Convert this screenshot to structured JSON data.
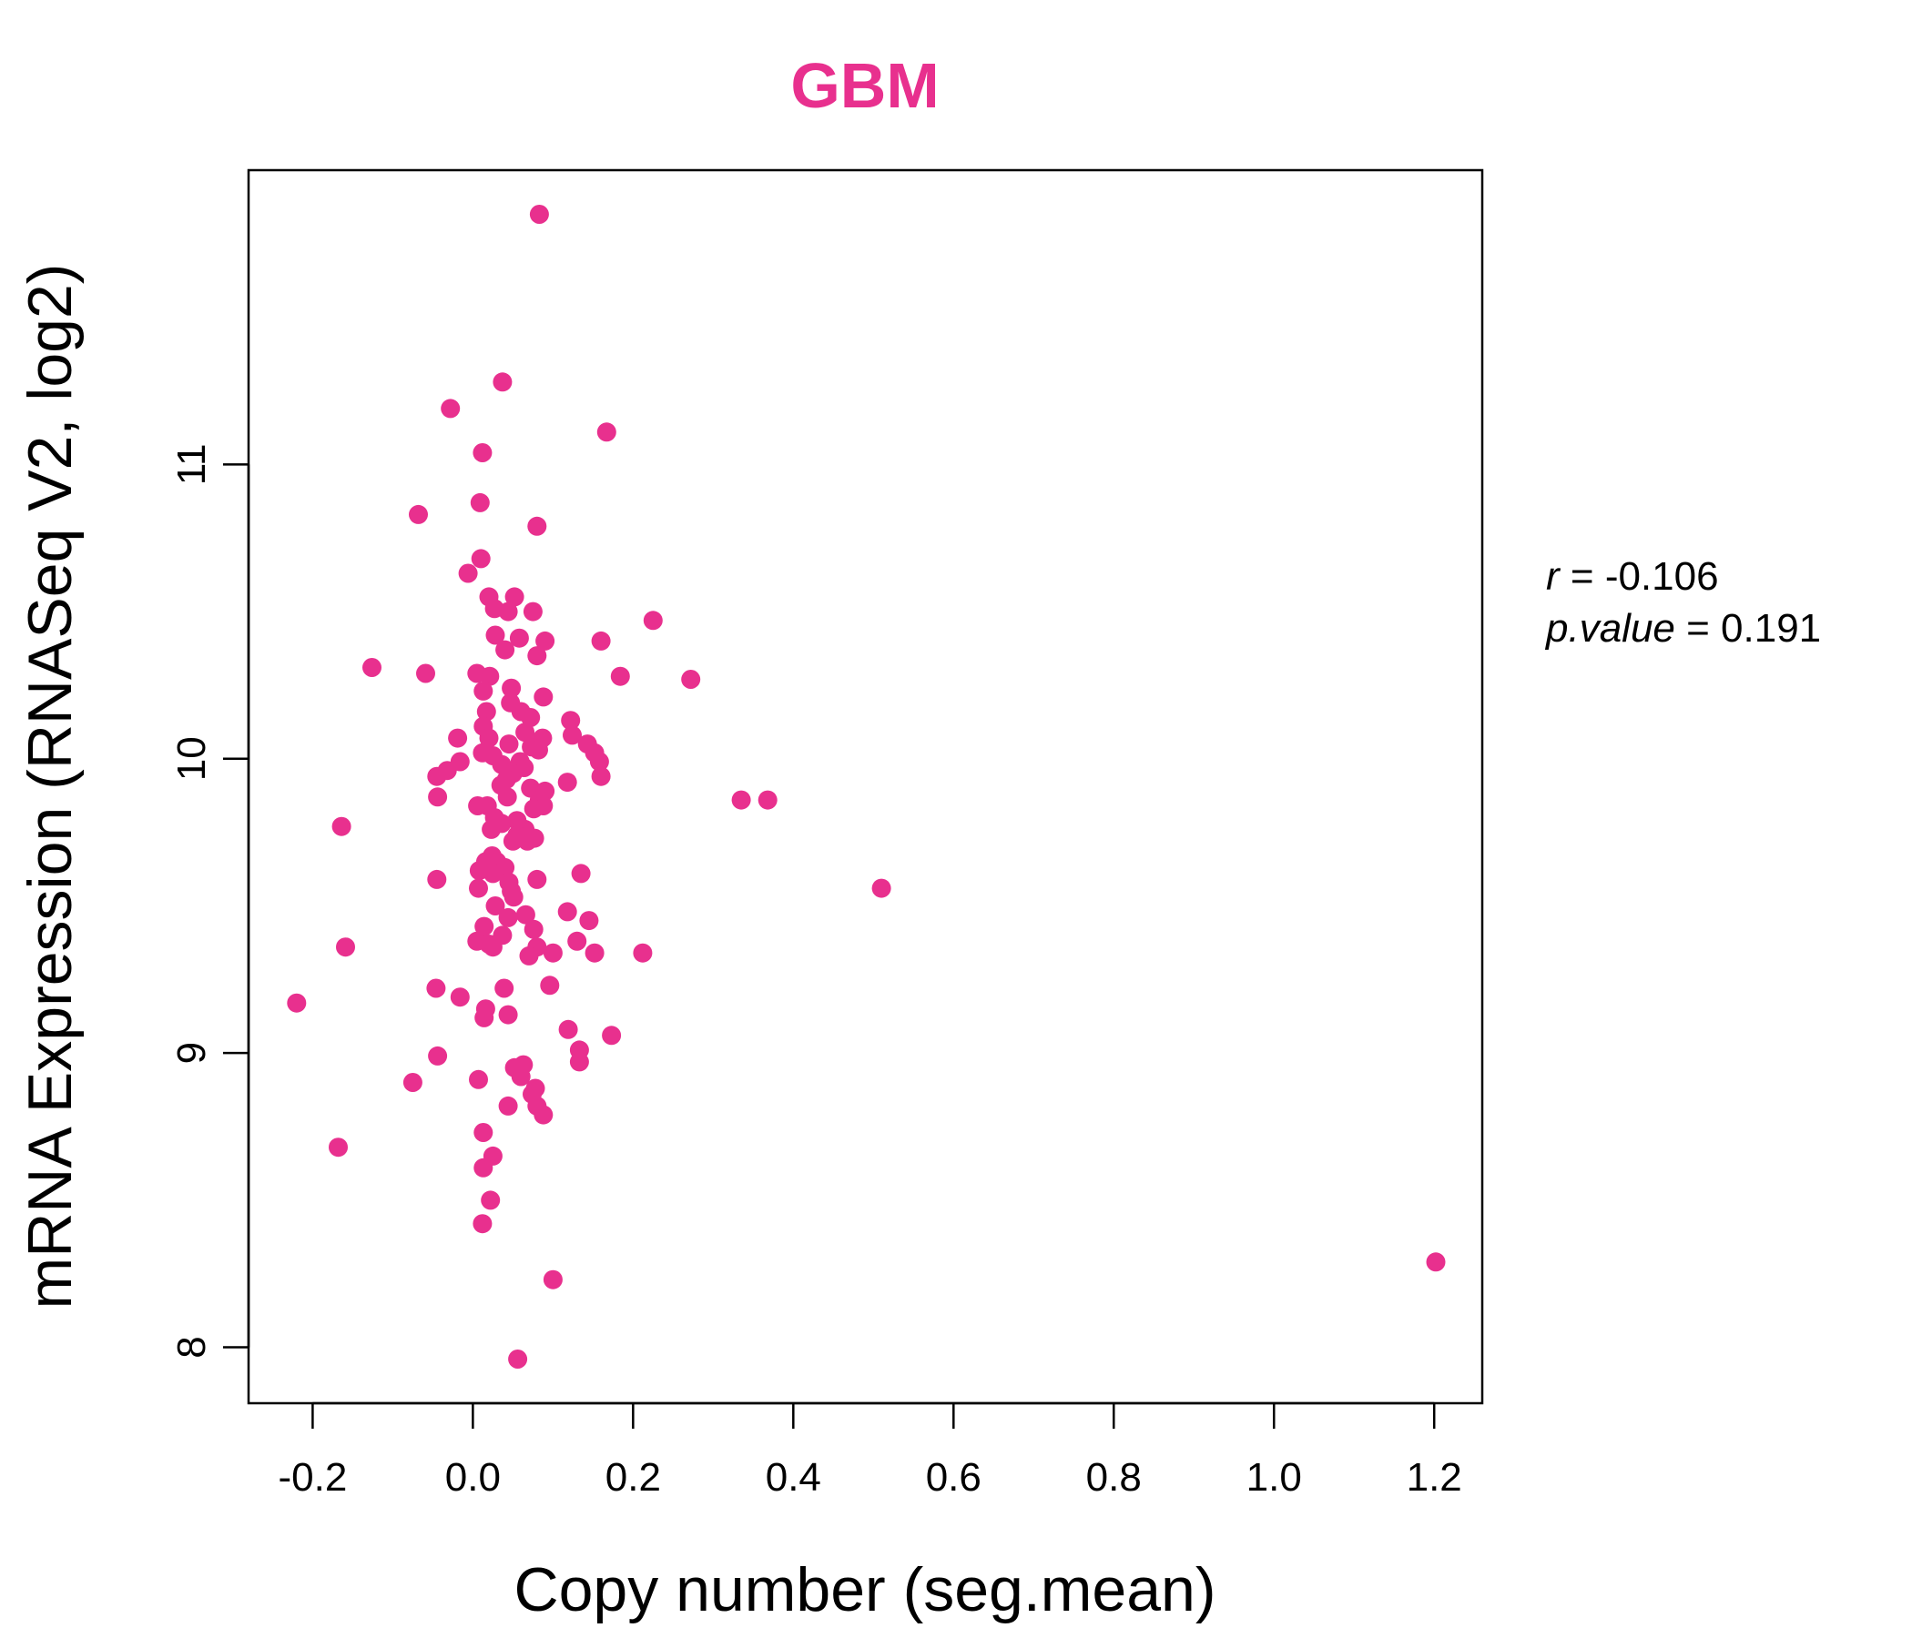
{
  "chart_data": {
    "type": "scatter",
    "title": "GBM",
    "xlabel": "Copy number (seg.mean)",
    "ylabel": "mRNA Expression (RNASeq V2, log2)",
    "xlim": [
      -0.28,
      1.26
    ],
    "ylim": [
      7.81,
      12.0
    ],
    "xticks": [
      -0.2,
      0.0,
      0.2,
      0.4,
      0.6,
      0.8,
      1.0,
      1.2
    ],
    "xtick_labels": [
      "-0.2",
      "0.0",
      "0.2",
      "0.4",
      "0.6",
      "0.8",
      "1.0",
      "1.2"
    ],
    "yticks": [
      8,
      9,
      10,
      11
    ],
    "ytick_labels": [
      "8",
      "9",
      "10",
      "11"
    ],
    "grid": false,
    "colors": {
      "point": "#E8308E",
      "title": "#E8308E"
    },
    "stats": {
      "r_label": "r",
      "r_value": "-0.106",
      "p_label": "p.value",
      "p_value": "0.191"
    },
    "points": [
      {
        "x": 0.083,
        "y": 11.85
      },
      {
        "x": 0.037,
        "y": 11.28
      },
      {
        "x": -0.028,
        "y": 11.19
      },
      {
        "x": 0.167,
        "y": 11.11
      },
      {
        "x": 0.012,
        "y": 11.04
      },
      {
        "x": 0.009,
        "y": 10.87
      },
      {
        "x": -0.068,
        "y": 10.83
      },
      {
        "x": 0.08,
        "y": 10.79
      },
      {
        "x": 0.01,
        "y": 10.68
      },
      {
        "x": -0.006,
        "y": 10.63
      },
      {
        "x": 0.02,
        "y": 10.55
      },
      {
        "x": 0.052,
        "y": 10.55
      },
      {
        "x": 0.027,
        "y": 10.51
      },
      {
        "x": 0.044,
        "y": 10.5
      },
      {
        "x": 0.075,
        "y": 10.5
      },
      {
        "x": 0.225,
        "y": 10.47
      },
      {
        "x": 0.028,
        "y": 10.42
      },
      {
        "x": 0.058,
        "y": 10.41
      },
      {
        "x": 0.09,
        "y": 10.4
      },
      {
        "x": 0.16,
        "y": 10.4
      },
      {
        "x": 0.04,
        "y": 10.37
      },
      {
        "x": 0.08,
        "y": 10.35
      },
      {
        "x": -0.126,
        "y": 10.31
      },
      {
        "x": 0.005,
        "y": 10.29
      },
      {
        "x": -0.059,
        "y": 10.29
      },
      {
        "x": 0.021,
        "y": 10.28
      },
      {
        "x": 0.184,
        "y": 10.28
      },
      {
        "x": 0.272,
        "y": 10.27
      },
      {
        "x": 0.013,
        "y": 10.23
      },
      {
        "x": 0.048,
        "y": 10.24
      },
      {
        "x": 0.088,
        "y": 10.21
      },
      {
        "x": 0.047,
        "y": 10.19
      },
      {
        "x": 0.017,
        "y": 10.16
      },
      {
        "x": 0.06,
        "y": 10.16
      },
      {
        "x": 0.072,
        "y": 10.14
      },
      {
        "x": 0.122,
        "y": 10.13
      },
      {
        "x": 0.013,
        "y": 10.11
      },
      {
        "x": 0.065,
        "y": 10.09
      },
      {
        "x": 0.124,
        "y": 10.08
      },
      {
        "x": 0.02,
        "y": 10.07
      },
      {
        "x": 0.087,
        "y": 10.07
      },
      {
        "x": -0.019,
        "y": 10.07
      },
      {
        "x": 0.143,
        "y": 10.05
      },
      {
        "x": 0.073,
        "y": 10.04
      },
      {
        "x": 0.045,
        "y": 10.05
      },
      {
        "x": 0.012,
        "y": 10.02
      },
      {
        "x": 0.082,
        "y": 10.03
      },
      {
        "x": 0.152,
        "y": 10.02
      },
      {
        "x": 0.025,
        "y": 10.01
      },
      {
        "x": 0.158,
        "y": 9.99
      },
      {
        "x": -0.016,
        "y": 9.99
      },
      {
        "x": 0.059,
        "y": 9.99
      },
      {
        "x": 0.036,
        "y": 9.98
      },
      {
        "x": 0.064,
        "y": 9.97
      },
      {
        "x": -0.032,
        "y": 9.96
      },
      {
        "x": 0.05,
        "y": 9.95
      },
      {
        "x": -0.045,
        "y": 9.94
      },
      {
        "x": 0.16,
        "y": 9.94
      },
      {
        "x": 0.042,
        "y": 9.93
      },
      {
        "x": 0.118,
        "y": 9.92
      },
      {
        "x": 0.035,
        "y": 9.91
      },
      {
        "x": 0.072,
        "y": 9.9
      },
      {
        "x": 0.09,
        "y": 9.89
      },
      {
        "x": -0.044,
        "y": 9.87
      },
      {
        "x": 0.043,
        "y": 9.87
      },
      {
        "x": 0.083,
        "y": 9.86
      },
      {
        "x": 0.335,
        "y": 9.86
      },
      {
        "x": 0.368,
        "y": 9.86
      },
      {
        "x": 0.006,
        "y": 9.84
      },
      {
        "x": 0.018,
        "y": 9.84
      },
      {
        "x": 0.088,
        "y": 9.84
      },
      {
        "x": 0.076,
        "y": 9.83
      },
      {
        "x": 0.027,
        "y": 9.8
      },
      {
        "x": 0.055,
        "y": 9.79
      },
      {
        "x": 0.036,
        "y": 9.78
      },
      {
        "x": -0.164,
        "y": 9.77
      },
      {
        "x": 0.023,
        "y": 9.76
      },
      {
        "x": 0.065,
        "y": 9.76
      },
      {
        "x": 0.055,
        "y": 9.74
      },
      {
        "x": 0.077,
        "y": 9.73
      },
      {
        "x": 0.05,
        "y": 9.72
      },
      {
        "x": 0.068,
        "y": 9.72
      },
      {
        "x": 0.024,
        "y": 9.67
      },
      {
        "x": 0.016,
        "y": 9.65
      },
      {
        "x": 0.03,
        "y": 9.65
      },
      {
        "x": 0.04,
        "y": 9.63
      },
      {
        "x": 0.008,
        "y": 9.62
      },
      {
        "x": 0.135,
        "y": 9.61
      },
      {
        "x": 0.025,
        "y": 9.61
      },
      {
        "x": -0.045,
        "y": 9.59
      },
      {
        "x": 0.08,
        "y": 9.59
      },
      {
        "x": 0.045,
        "y": 9.58
      },
      {
        "x": 0.007,
        "y": 9.56
      },
      {
        "x": 0.048,
        "y": 9.55
      },
      {
        "x": 0.51,
        "y": 9.56
      },
      {
        "x": 0.051,
        "y": 9.53
      },
      {
        "x": 0.028,
        "y": 9.5
      },
      {
        "x": 0.118,
        "y": 9.48
      },
      {
        "x": 0.066,
        "y": 9.47
      },
      {
        "x": 0.044,
        "y": 9.46
      },
      {
        "x": 0.145,
        "y": 9.45
      },
      {
        "x": 0.014,
        "y": 9.43
      },
      {
        "x": 0.076,
        "y": 9.42
      },
      {
        "x": 0.037,
        "y": 9.4
      },
      {
        "x": 0.005,
        "y": 9.38
      },
      {
        "x": 0.13,
        "y": 9.38
      },
      {
        "x": 0.02,
        "y": 9.37
      },
      {
        "x": 0.08,
        "y": 9.36
      },
      {
        "x": 0.025,
        "y": 9.36
      },
      {
        "x": -0.159,
        "y": 9.36
      },
      {
        "x": 0.1,
        "y": 9.34
      },
      {
        "x": 0.152,
        "y": 9.34
      },
      {
        "x": 0.212,
        "y": 9.34
      },
      {
        "x": 0.07,
        "y": 9.33
      },
      {
        "x": 0.096,
        "y": 9.23
      },
      {
        "x": -0.046,
        "y": 9.22
      },
      {
        "x": 0.039,
        "y": 9.22
      },
      {
        "x": -0.016,
        "y": 9.19
      },
      {
        "x": -0.22,
        "y": 9.17
      },
      {
        "x": 0.016,
        "y": 9.15
      },
      {
        "x": 0.044,
        "y": 9.13
      },
      {
        "x": 0.014,
        "y": 9.12
      },
      {
        "x": 0.119,
        "y": 9.08
      },
      {
        "x": 0.173,
        "y": 9.06
      },
      {
        "x": 0.133,
        "y": 9.01
      },
      {
        "x": -0.044,
        "y": 8.99
      },
      {
        "x": 0.133,
        "y": 8.97
      },
      {
        "x": 0.063,
        "y": 8.96
      },
      {
        "x": 0.052,
        "y": 8.95
      },
      {
        "x": 0.06,
        "y": 8.92
      },
      {
        "x": 0.007,
        "y": 8.91
      },
      {
        "x": -0.075,
        "y": 8.9
      },
      {
        "x": 0.078,
        "y": 8.88
      },
      {
        "x": 0.074,
        "y": 8.86
      },
      {
        "x": 0.044,
        "y": 8.82
      },
      {
        "x": 0.08,
        "y": 8.82
      },
      {
        "x": 0.088,
        "y": 8.79
      },
      {
        "x": 0.013,
        "y": 8.73
      },
      {
        "x": -0.168,
        "y": 8.68
      },
      {
        "x": 0.025,
        "y": 8.65
      },
      {
        "x": 0.013,
        "y": 8.61
      },
      {
        "x": 0.022,
        "y": 8.5
      },
      {
        "x": 0.012,
        "y": 8.42
      },
      {
        "x": 1.202,
        "y": 8.29
      },
      {
        "x": 0.1,
        "y": 8.23
      },
      {
        "x": 0.056,
        "y": 7.96
      }
    ]
  }
}
